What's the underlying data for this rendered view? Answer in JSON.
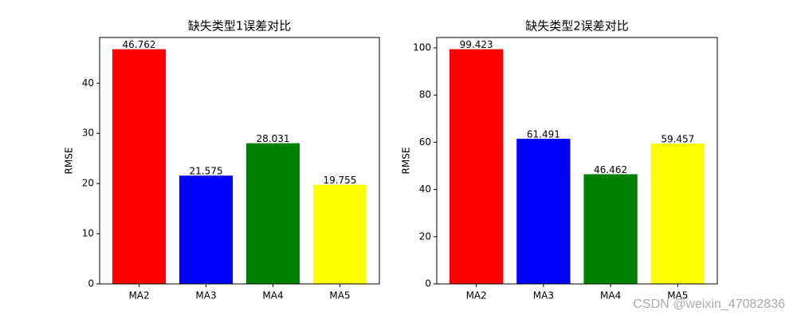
{
  "chart_data": [
    {
      "type": "bar",
      "title": "缺失类型1误差对比",
      "y_label": "RMSE",
      "categories": [
        "MA2",
        "MA3",
        "MA4",
        "MA5"
      ],
      "values": [
        46.762,
        21.575,
        28.031,
        19.755
      ],
      "colors": [
        "red",
        "blue",
        "green",
        "yellow"
      ],
      "ylim": [
        0,
        49.1
      ],
      "yticks": [
        0,
        10,
        20,
        30,
        40
      ]
    },
    {
      "type": "bar",
      "title": "缺失类型2误差对比",
      "y_label": "RMSE",
      "categories": [
        "MA2",
        "MA3",
        "MA4",
        "MA5"
      ],
      "values": [
        99.423,
        61.491,
        46.462,
        59.457
      ],
      "colors": [
        "red",
        "blue",
        "green",
        "yellow"
      ],
      "ylim": [
        0,
        104.39
      ],
      "yticks": [
        0,
        20,
        40,
        60,
        80,
        100
      ]
    }
  ],
  "watermark": "CSDN @weixin_47082836"
}
